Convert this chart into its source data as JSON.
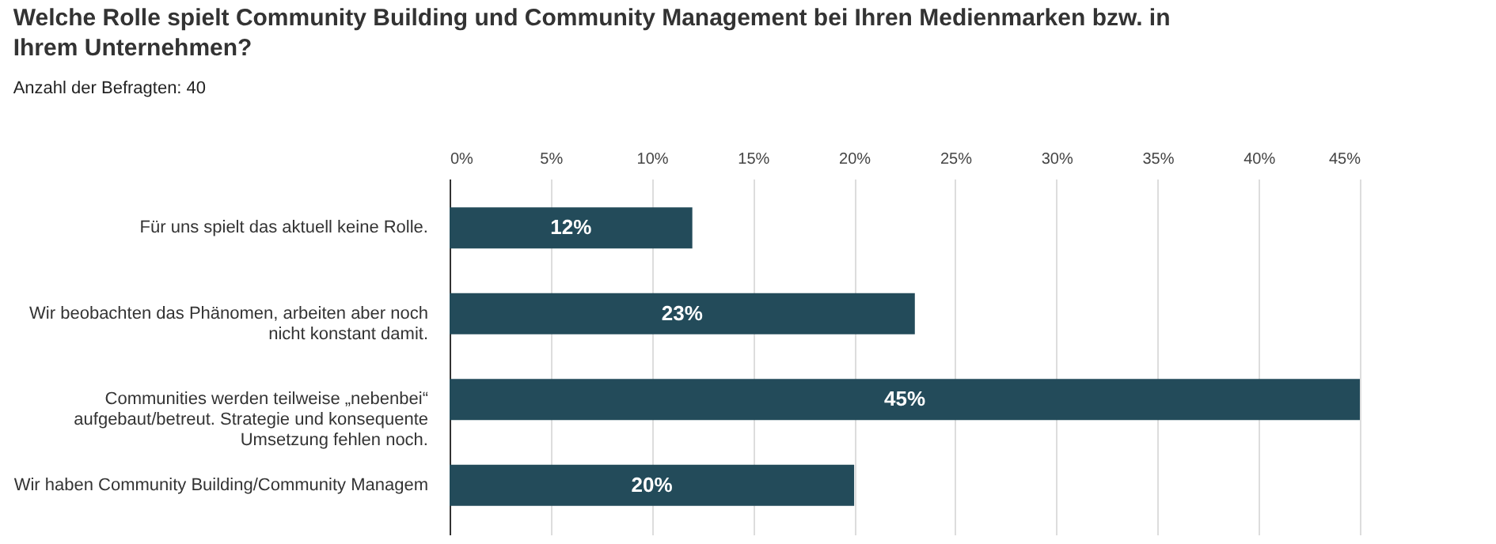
{
  "chart_data": {
    "type": "bar",
    "orientation": "horizontal",
    "title": "Welche Rolle spielt Community Building und Community Management bei Ihren Medienmarken bzw. in Ihrem Unternehmen?",
    "subtitle": "Anzahl der Befragten: 40",
    "categories": [
      "Für uns spielt das aktuell keine Rolle.",
      "Wir beobachten das Phänomen, arbeiten aber noch nicht konstant damit.",
      "Communities werden teilweise „nebenbei“ aufgebaut/betreut. Strategie und konsequente Umsetzung fehlen noch.",
      "Wir haben Community Building/Community Managem"
    ],
    "values": [
      12,
      23,
      45,
      20
    ],
    "value_labels": [
      "12%",
      "23%",
      "45%",
      "20%"
    ],
    "color": "#234b5a",
    "xlim": [
      0,
      45
    ],
    "xticks": [
      {
        "value": 0,
        "label": "0%"
      },
      {
        "value": 5,
        "label": "5%"
      },
      {
        "value": 10,
        "label": "10%"
      },
      {
        "value": 15,
        "label": "15%"
      },
      {
        "value": 20,
        "label": "20%"
      },
      {
        "value": 25,
        "label": "25%"
      },
      {
        "value": 30,
        "label": "30%"
      },
      {
        "value": 35,
        "label": "35%"
      },
      {
        "value": 40,
        "label": "40%"
      },
      {
        "value": 45,
        "label": "45%"
      }
    ],
    "grid": "x"
  }
}
